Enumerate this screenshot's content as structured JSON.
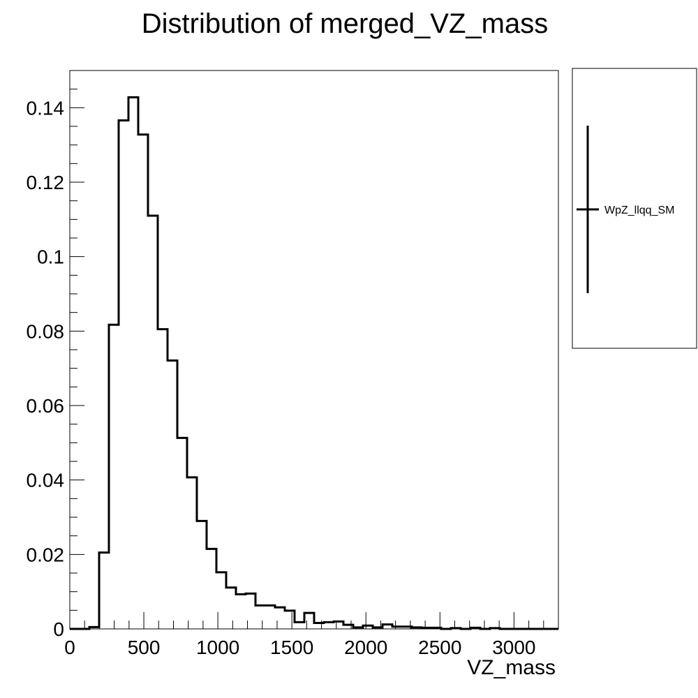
{
  "chart_data": {
    "type": "histogram",
    "title": "Distribution of merged_VZ_mass",
    "xlabel": "VZ_mass",
    "ylabel": "",
    "xlim": [
      0,
      3300
    ],
    "ylim": [
      0,
      0.15
    ],
    "x_ticks": [
      0,
      500,
      1000,
      1500,
      2000,
      2500,
      3000
    ],
    "x_tick_labels": [
      "0",
      "500",
      "1000",
      "1500",
      "2000",
      "2500",
      "3000"
    ],
    "y_ticks": [
      0,
      0.02,
      0.04,
      0.06,
      0.08,
      0.1,
      0.12,
      0.14
    ],
    "y_tick_labels": [
      "0",
      "0.02",
      "0.04",
      "0.06",
      "0.08",
      "0.1",
      "0.12",
      "0.14"
    ],
    "bin_width": 66,
    "bin_edges_start": 0,
    "values": [
      0,
      0,
      0.0005,
      0.0205,
      0.0817,
      0.1366,
      0.1428,
      0.1328,
      0.111,
      0.0805,
      0.0721,
      0.0513,
      0.0407,
      0.029,
      0.0215,
      0.0152,
      0.0111,
      0.0093,
      0.0095,
      0.0063,
      0.0063,
      0.0058,
      0.0049,
      0.0018,
      0.0043,
      0.0016,
      0.0018,
      0.002,
      0.0011,
      0.0004,
      0.0009,
      0.0004,
      0.0012,
      0.0006,
      0.0006,
      0.0004,
      0.0003,
      0.0003,
      0.0,
      0.0002,
      0.0,
      0.0003,
      0.0,
      0.0002,
      0.0,
      0.0,
      0.0,
      0.0,
      0.0,
      0.0,
      0.0
    ],
    "series": [
      {
        "name": "WpZ_llqq_SM"
      }
    ],
    "legend_position": "right",
    "grid": false,
    "line_color": "#000000"
  }
}
